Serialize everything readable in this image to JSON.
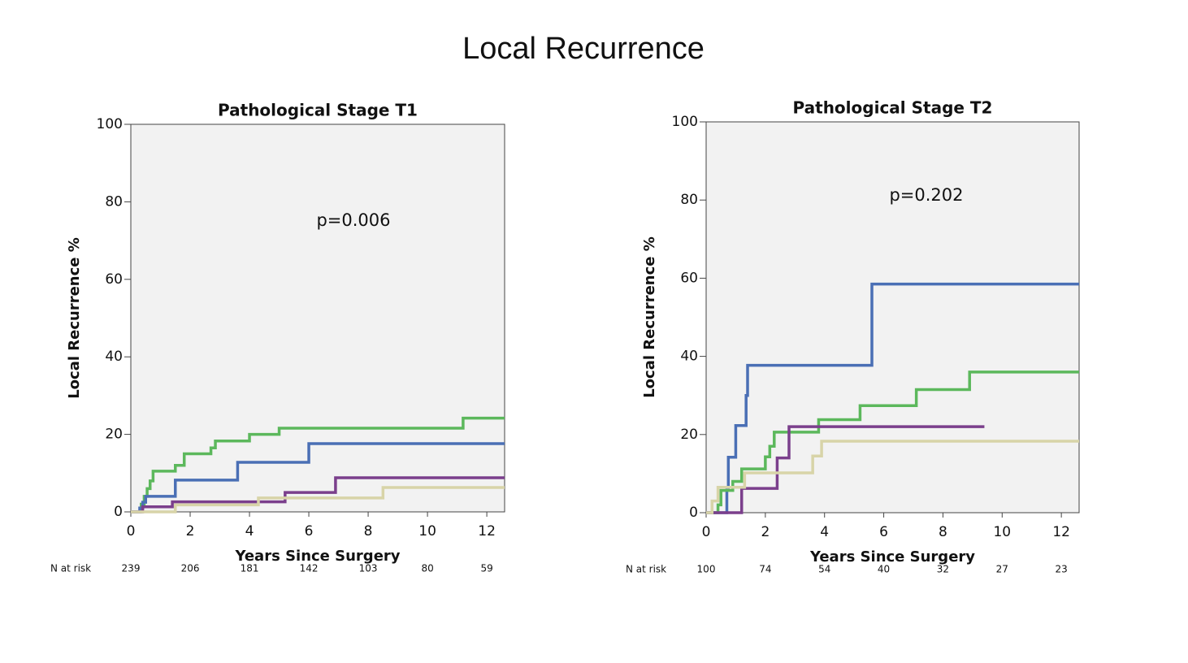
{
  "title": "Local Recurrence",
  "chart_data": [
    {
      "type": "step",
      "title": "Pathological Stage T1",
      "xlabel": "Years Since Surgery",
      "ylabel": "Local Recurrence %",
      "annotation": "p=0.006",
      "xlim": [
        0,
        12.6
      ],
      "ylim": [
        0,
        100
      ],
      "xticks": [
        0,
        2,
        4,
        6,
        8,
        10,
        12
      ],
      "yticks": [
        0,
        20,
        40,
        60,
        80,
        100
      ],
      "risk_label": "N at risk",
      "at_risk": [
        239,
        206,
        181,
        142,
        103,
        80,
        59
      ],
      "series": [
        {
          "color": "#5cb85c",
          "x": [
            0,
            0.35,
            0.45,
            0.55,
            0.65,
            0.75,
            1.5,
            1.8,
            2.7,
            2.85,
            4.0,
            5.0,
            11.2,
            12.6
          ],
          "values": [
            0,
            2,
            4,
            6,
            8,
            10.5,
            12,
            15,
            16.5,
            18.3,
            20,
            21.6,
            24.2,
            24.2
          ]
        },
        {
          "color": "#4a6fb5",
          "x": [
            0,
            0.3,
            0.4,
            0.5,
            1.5,
            3.6,
            6.0,
            12.6
          ],
          "values": [
            0,
            1,
            2.5,
            4,
            8.2,
            12.8,
            17.6,
            17.6
          ]
        },
        {
          "color": "#7b3f8c",
          "x": [
            0,
            0.4,
            1.4,
            5.2,
            6.9,
            12.6
          ],
          "values": [
            0,
            1.3,
            2.6,
            5.0,
            8.8,
            8.8
          ]
        },
        {
          "color": "#d8d4a8",
          "x": [
            0,
            1.5,
            4.3,
            8.5,
            12.6
          ],
          "values": [
            0,
            1.8,
            3.6,
            6.3,
            6.3
          ]
        }
      ]
    },
    {
      "type": "step",
      "title": "Pathological Stage T2",
      "xlabel": "Years Since Surgery",
      "ylabel": "Local Recurrence %",
      "annotation": "p=0.202",
      "xlim": [
        0,
        12.6
      ],
      "ylim": [
        0,
        100
      ],
      "xticks": [
        0,
        2,
        4,
        6,
        8,
        10,
        12
      ],
      "yticks": [
        0,
        20,
        40,
        60,
        80,
        100
      ],
      "risk_label": "N at risk",
      "at_risk": [
        100,
        74,
        54,
        40,
        32,
        27,
        23
      ],
      "series": [
        {
          "color": "#4a6fb5",
          "x": [
            0,
            0.7,
            0.75,
            1.0,
            1.35,
            1.4,
            5.6,
            12.6
          ],
          "values": [
            0,
            6,
            14.2,
            22.3,
            30,
            37.7,
            58.5,
            58.5
          ]
        },
        {
          "color": "#5cb85c",
          "x": [
            0,
            0.4,
            0.5,
            0.9,
            1.2,
            2.0,
            2.15,
            2.3,
            3.8,
            5.2,
            7.1,
            8.9,
            12.6
          ],
          "values": [
            0,
            2,
            5.7,
            8,
            11.2,
            14.3,
            17,
            20.6,
            23.8,
            27.4,
            31.5,
            36.0,
            36.0
          ]
        },
        {
          "color": "#7b3f8c",
          "x": [
            0,
            1.2,
            2.4,
            2.8,
            9.4
          ],
          "values": [
            0,
            6.2,
            14,
            22,
            22
          ]
        },
        {
          "color": "#d8d4a8",
          "x": [
            0,
            0.2,
            0.4,
            1.3,
            3.6,
            3.9,
            12.6
          ],
          "values": [
            0,
            3,
            6.5,
            10.2,
            14.5,
            18.3,
            18.3
          ]
        }
      ]
    }
  ]
}
